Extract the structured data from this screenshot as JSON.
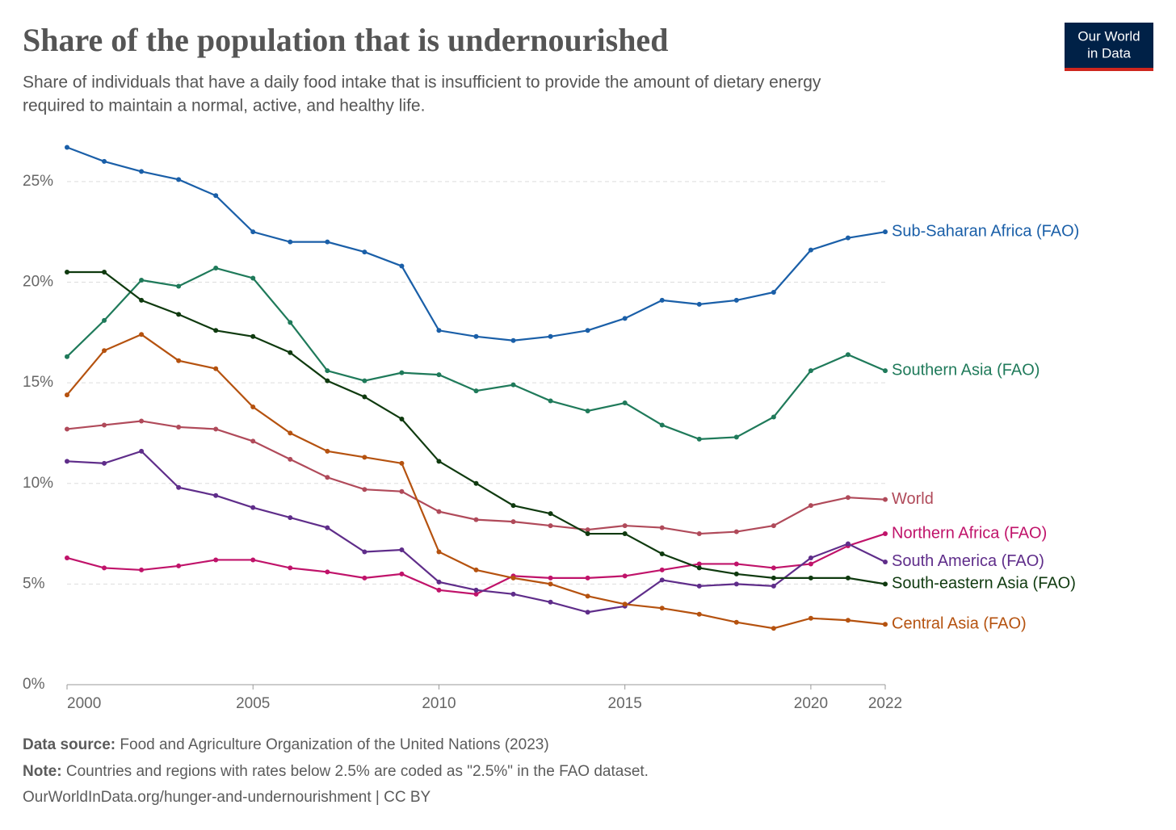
{
  "chart_data": {
    "type": "line",
    "title": "Share of the population that is undernourished",
    "subtitle": [
      "Share of individuals that have a daily food intake that is insufficient to provide the amount of dietary energy",
      "required to maintain a normal, active, and healthy life."
    ],
    "logo": [
      "Our World",
      "in Data"
    ],
    "x": [
      2000,
      2001,
      2002,
      2003,
      2004,
      2005,
      2006,
      2007,
      2008,
      2009,
      2010,
      2011,
      2012,
      2013,
      2014,
      2015,
      2016,
      2017,
      2018,
      2019,
      2020,
      2021,
      2022
    ],
    "xlim": [
      2000,
      2022
    ],
    "xticks": [
      2000,
      2005,
      2010,
      2015,
      2020,
      2022
    ],
    "ylim": [
      0,
      27
    ],
    "yticks": [
      {
        "value": 0,
        "label": "0%"
      },
      {
        "value": 5,
        "label": "5%"
      },
      {
        "value": 10,
        "label": "10%"
      },
      {
        "value": 15,
        "label": "15%"
      },
      {
        "value": 20,
        "label": "20%"
      },
      {
        "value": 25,
        "label": "25%"
      }
    ],
    "grid": true,
    "series": [
      {
        "name": "Sub-Saharan Africa (FAO)",
        "color": "#1a5fa8",
        "values": [
          26.7,
          26.0,
          25.5,
          25.1,
          24.3,
          22.5,
          22.0,
          22.0,
          21.5,
          20.8,
          17.6,
          17.3,
          17.1,
          17.3,
          17.6,
          18.2,
          19.1,
          18.9,
          19.1,
          19.5,
          21.6,
          22.2,
          22.5
        ]
      },
      {
        "name": "Southern Asia (FAO)",
        "color": "#1f7a5a",
        "values": [
          16.3,
          18.1,
          20.1,
          19.8,
          20.7,
          20.2,
          18.0,
          15.6,
          15.1,
          15.5,
          15.4,
          14.6,
          14.9,
          14.1,
          13.6,
          14.0,
          12.9,
          12.2,
          12.3,
          13.3,
          15.6,
          16.4,
          15.6
        ]
      },
      {
        "name": "World",
        "color": "#b04a5a",
        "values": [
          12.7,
          12.9,
          13.1,
          12.8,
          12.7,
          12.1,
          11.2,
          10.3,
          9.7,
          9.6,
          8.6,
          8.2,
          8.1,
          7.9,
          7.7,
          7.9,
          7.8,
          7.5,
          7.6,
          7.9,
          8.9,
          9.3,
          9.2
        ]
      },
      {
        "name": "Northern Africa (FAO)",
        "color": "#c0136a",
        "values": [
          6.3,
          5.8,
          5.7,
          5.9,
          6.2,
          6.2,
          5.8,
          5.6,
          5.3,
          5.5,
          4.7,
          4.5,
          5.4,
          5.3,
          5.3,
          5.4,
          5.7,
          6.0,
          6.0,
          5.8,
          6.0,
          6.9,
          7.5
        ]
      },
      {
        "name": "South America (FAO)",
        "color": "#5f2d8a",
        "values": [
          11.1,
          11.0,
          11.6,
          9.8,
          9.4,
          8.8,
          8.3,
          7.8,
          6.6,
          6.7,
          5.1,
          4.7,
          4.5,
          4.1,
          3.6,
          3.9,
          5.2,
          4.9,
          5.0,
          4.9,
          6.3,
          7.0,
          6.1
        ]
      },
      {
        "name": "South-eastern Asia (FAO)",
        "color": "#0f3a0f",
        "values": [
          20.5,
          20.5,
          19.1,
          18.4,
          17.6,
          17.3,
          16.5,
          15.1,
          14.3,
          13.2,
          11.1,
          10.0,
          8.9,
          8.5,
          7.5,
          7.5,
          6.5,
          5.8,
          5.5,
          5.3,
          5.3,
          5.3,
          5.0
        ]
      },
      {
        "name": "Central Asia (FAO)",
        "color": "#b5520f",
        "values": [
          14.4,
          16.6,
          17.4,
          16.1,
          15.7,
          13.8,
          12.5,
          11.6,
          11.3,
          11.0,
          6.6,
          5.7,
          5.3,
          5.0,
          4.4,
          4.0,
          3.8,
          3.5,
          3.1,
          2.8,
          3.3,
          3.2,
          3.0
        ]
      }
    ],
    "source_label": "Data source:",
    "source": "Food and Agriculture Organization of the United Nations (2023)",
    "note_label": "Note:",
    "note": "Countries and regions with rates below 2.5% are coded as \"2.5%\" in the FAO dataset.",
    "url": "OurWorldInData.org/hunger-and-undernourishment | CC BY"
  }
}
